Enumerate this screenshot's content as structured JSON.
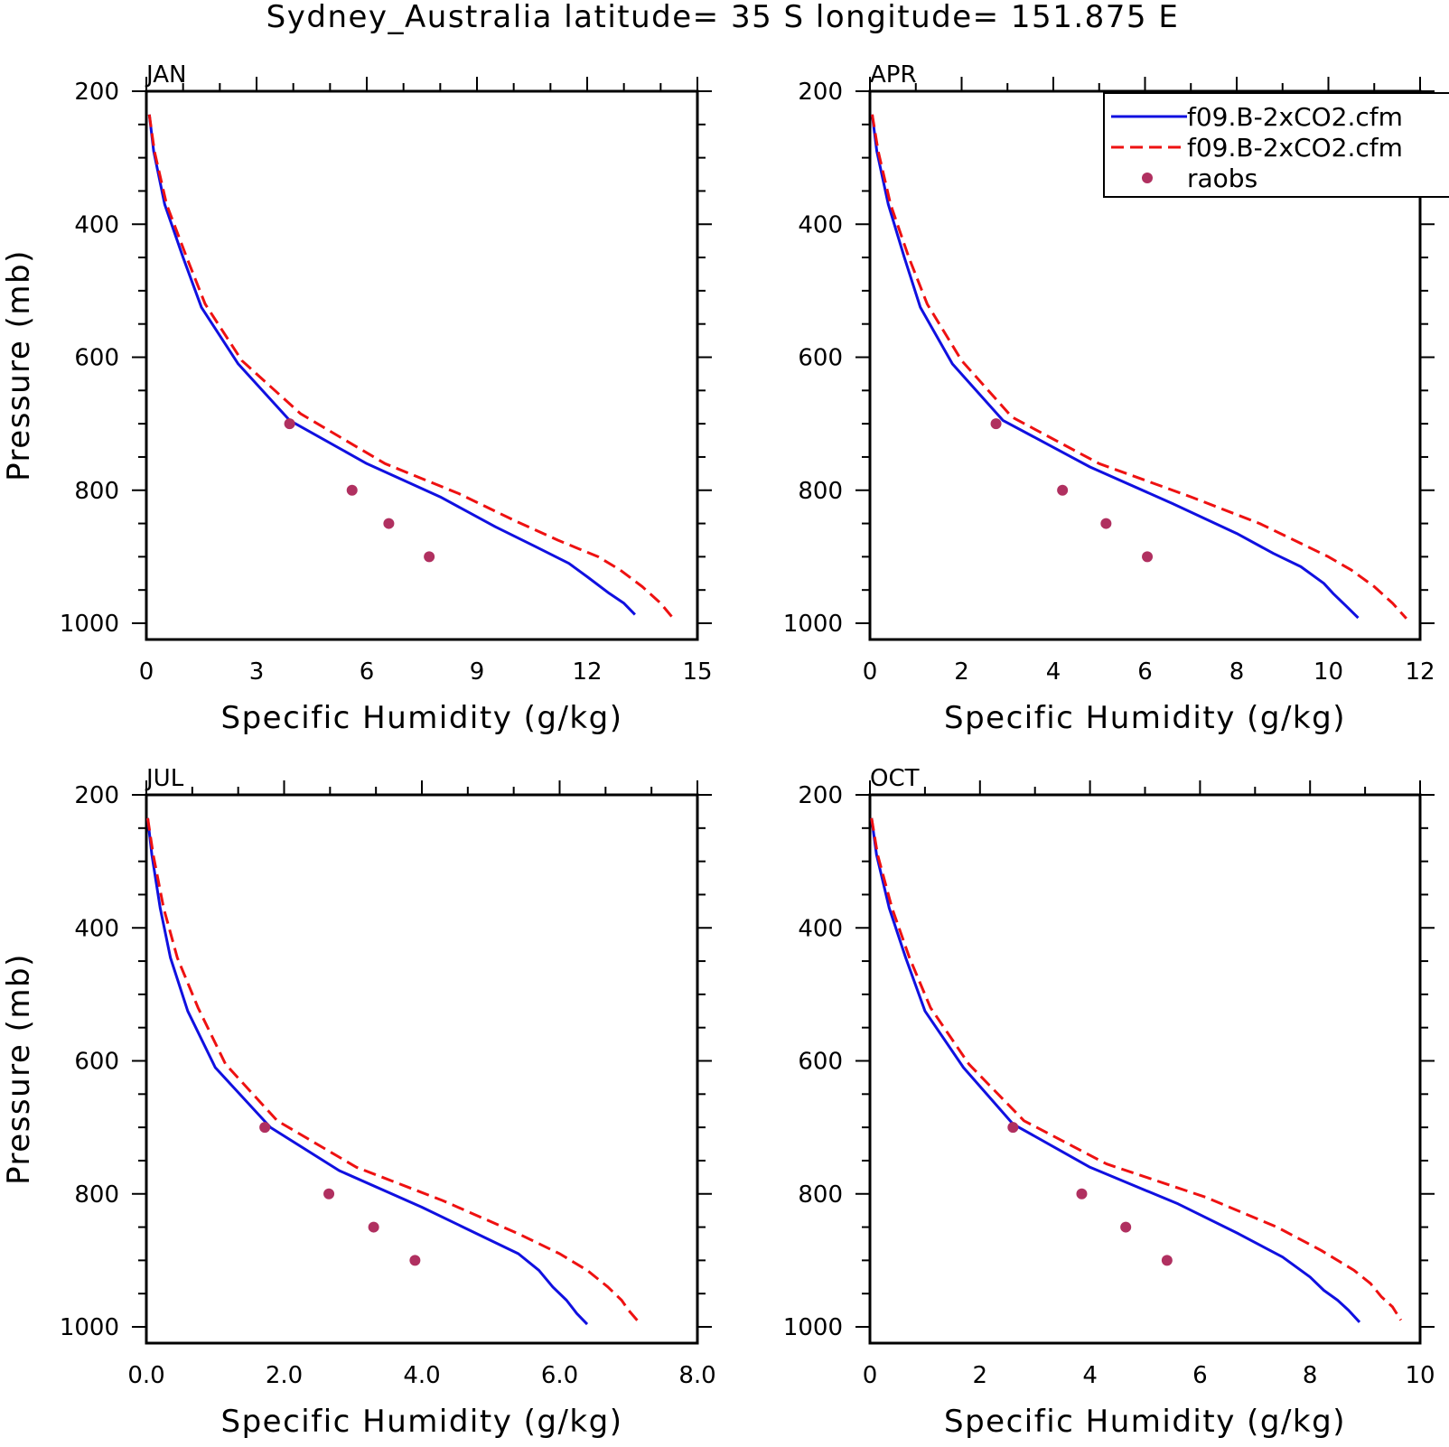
{
  "title": "Sydney_Australia  latitude= 35 S longitude= 151.875 E",
  "colors": {
    "model1": "#1010e0",
    "model2": "#ee1111",
    "obs": "#b03060",
    "axis": "#000000"
  },
  "legend": {
    "entries": [
      {
        "label": "f09.B-2xCO2.cfm",
        "style": "solid",
        "color": "#1010e0"
      },
      {
        "label": "f09.B-2xCO2.cfm",
        "style": "dashed",
        "color": "#ee1111"
      },
      {
        "label": "raobs",
        "style": "marker",
        "color": "#b03060"
      }
    ]
  },
  "chart_data": [
    {
      "type": "line",
      "panel": "JAN",
      "xlabel": "Specific Humidity (g/kg)",
      "ylabel": "Pressure (mb)",
      "xlim": [
        0,
        15
      ],
      "ylim": [
        200,
        1000
      ],
      "y_reversed": true,
      "xticks": [
        "0",
        "3",
        "6",
        "9",
        "12",
        "15"
      ],
      "yticks": [
        "200",
        "400",
        "600",
        "800",
        "1000"
      ],
      "series": [
        {
          "name": "f09.B-2xCO2.cfm",
          "x": [
            0.08,
            0.2,
            0.5,
            1.0,
            1.5,
            2.5,
            3.9,
            6.0,
            8.0,
            9.5,
            10.6,
            11.5,
            12.0,
            12.6,
            13.0,
            13.3
          ],
          "y": [
            235,
            290,
            370,
            450,
            525,
            610,
            695,
            760,
            810,
            855,
            885,
            910,
            930,
            955,
            970,
            987
          ]
        },
        {
          "name": "f09.B-2xCO2.cfm",
          "x": [
            0.08,
            0.22,
            0.55,
            1.1,
            1.6,
            2.6,
            4.2,
            6.5,
            8.5,
            10.0,
            11.2,
            12.3,
            12.9,
            13.5,
            14.0,
            14.3
          ],
          "y": [
            235,
            290,
            370,
            450,
            520,
            605,
            685,
            760,
            805,
            845,
            875,
            900,
            920,
            945,
            970,
            990
          ]
        },
        {
          "name": "raobs",
          "x": [
            3.9,
            5.6,
            6.6,
            7.7
          ],
          "y": [
            700,
            800,
            850,
            900
          ]
        }
      ]
    },
    {
      "type": "line",
      "panel": "APR",
      "xlabel": "Specific Humidity (g/kg)",
      "ylabel": "",
      "xlim": [
        0,
        12
      ],
      "ylim": [
        200,
        1000
      ],
      "y_reversed": true,
      "xticks": [
        "0",
        "2",
        "4",
        "6",
        "8",
        "10",
        "12"
      ],
      "yticks": [
        "200",
        "400",
        "600",
        "800",
        "1000"
      ],
      "series": [
        {
          "name": "f09.B-2xCO2.cfm",
          "x": [
            0.05,
            0.15,
            0.4,
            0.75,
            1.1,
            1.8,
            2.9,
            4.8,
            6.6,
            8.0,
            8.8,
            9.4,
            9.9,
            10.1,
            10.4,
            10.65
          ],
          "y": [
            235,
            290,
            370,
            450,
            525,
            610,
            695,
            765,
            820,
            865,
            895,
            915,
            940,
            955,
            975,
            992
          ]
        },
        {
          "name": "f09.B-2xCO2.cfm",
          "x": [
            0.05,
            0.18,
            0.45,
            0.85,
            1.25,
            2.0,
            3.1,
            5.0,
            7.0,
            8.5,
            9.4,
            10.0,
            10.5,
            11.0,
            11.4,
            11.7
          ],
          "y": [
            235,
            290,
            370,
            450,
            520,
            605,
            690,
            760,
            810,
            850,
            880,
            900,
            920,
            945,
            970,
            993
          ]
        },
        {
          "name": "raobs",
          "x": [
            2.75,
            4.2,
            5.15,
            6.05
          ],
          "y": [
            700,
            800,
            850,
            900
          ]
        }
      ]
    },
    {
      "type": "line",
      "panel": "JUL",
      "xlabel": "Specific Humidity (g/kg)",
      "ylabel": "Pressure (mb)",
      "xlim": [
        0,
        8
      ],
      "ylim": [
        200,
        1000
      ],
      "y_reversed": true,
      "xticks": [
        "0.0",
        "2.0",
        "4.0",
        "6.0",
        "8.0"
      ],
      "yticks": [
        "200",
        "400",
        "600",
        "800",
        "1000"
      ],
      "series": [
        {
          "name": "f09.B-2xCO2.cfm",
          "x": [
            0.02,
            0.08,
            0.2,
            0.35,
            0.6,
            1.0,
            1.8,
            2.8,
            4.0,
            4.9,
            5.4,
            5.7,
            5.9,
            6.1,
            6.25,
            6.4
          ],
          "y": [
            235,
            290,
            370,
            445,
            525,
            610,
            700,
            765,
            820,
            865,
            890,
            915,
            940,
            960,
            980,
            996
          ]
        },
        {
          "name": "f09.B-2xCO2.cfm",
          "x": [
            0.02,
            0.1,
            0.25,
            0.45,
            0.75,
            1.15,
            1.9,
            3.05,
            4.3,
            5.4,
            6.0,
            6.4,
            6.7,
            6.9,
            7.0,
            7.15
          ],
          "y": [
            235,
            290,
            370,
            445,
            520,
            605,
            690,
            760,
            810,
            860,
            890,
            915,
            940,
            960,
            975,
            993
          ]
        },
        {
          "name": "raobs",
          "x": [
            1.72,
            2.65,
            3.3,
            3.9
          ],
          "y": [
            700,
            800,
            850,
            900
          ]
        }
      ]
    },
    {
      "type": "line",
      "panel": "OCT",
      "xlabel": "Specific Humidity (g/kg)",
      "ylabel": "",
      "xlim": [
        0,
        10
      ],
      "ylim": [
        200,
        1000
      ],
      "y_reversed": true,
      "xticks": [
        "0",
        "2",
        "4",
        "6",
        "8",
        "10"
      ],
      "yticks": [
        "200",
        "400",
        "600",
        "800",
        "1000"
      ],
      "series": [
        {
          "name": "f09.B-2xCO2.cfm",
          "x": [
            0.03,
            0.12,
            0.35,
            0.65,
            1.0,
            1.7,
            2.6,
            4.0,
            5.6,
            6.7,
            7.5,
            8.0,
            8.25,
            8.5,
            8.7,
            8.9
          ],
          "y": [
            235,
            290,
            370,
            445,
            525,
            610,
            695,
            760,
            815,
            860,
            895,
            925,
            945,
            960,
            975,
            993
          ]
        },
        {
          "name": "f09.B-2xCO2.cfm",
          "x": [
            0.03,
            0.14,
            0.4,
            0.72,
            1.1,
            1.8,
            2.8,
            4.3,
            6.1,
            7.4,
            8.2,
            8.8,
            9.1,
            9.3,
            9.5,
            9.65
          ],
          "y": [
            235,
            290,
            370,
            445,
            520,
            605,
            690,
            755,
            805,
            850,
            885,
            915,
            935,
            955,
            970,
            990
          ]
        },
        {
          "name": "raobs",
          "x": [
            2.6,
            3.85,
            4.65,
            5.4
          ],
          "y": [
            700,
            800,
            850,
            900
          ]
        }
      ]
    }
  ]
}
